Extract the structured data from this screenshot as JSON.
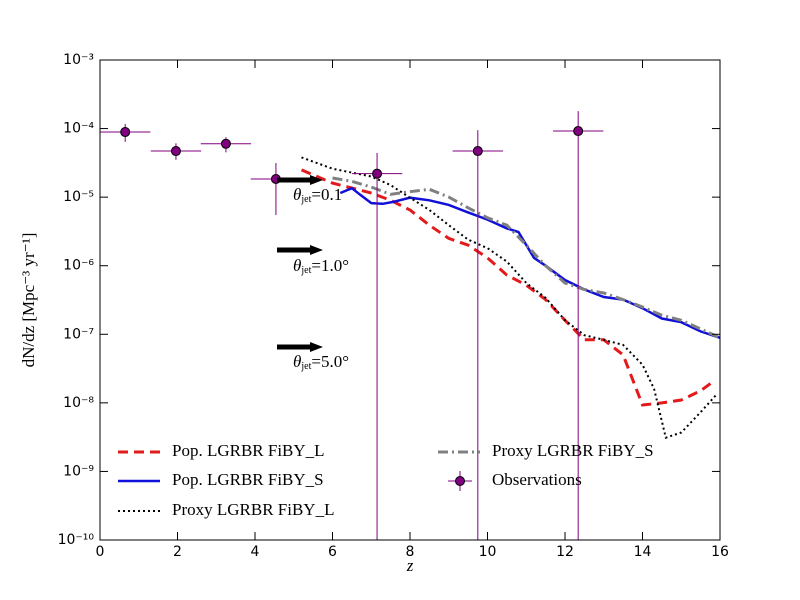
{
  "chart_data": {
    "type": "line",
    "xlabel": "z",
    "ylabel": "dN/dz [Mpc⁻³ yr⁻¹]",
    "xlim": [
      0,
      16
    ],
    "xticks": [
      0,
      2,
      4,
      6,
      8,
      10,
      12,
      14,
      16
    ],
    "ylim": [
      1e-10,
      0.001
    ],
    "ylog": true,
    "yticks": [
      {
        "value": 1e-10,
        "label": "10⁻¹⁰"
      },
      {
        "value": 1e-09,
        "label": "10⁻⁹"
      },
      {
        "value": 1e-08,
        "label": "10⁻⁸"
      },
      {
        "value": 1e-07,
        "label": "10⁻⁷"
      },
      {
        "value": 1e-06,
        "label": "10⁻⁶"
      },
      {
        "value": 1e-05,
        "label": "10⁻⁵"
      },
      {
        "value": 0.0001,
        "label": "10⁻⁴"
      },
      {
        "value": 0.001,
        "label": "10⁻³"
      }
    ],
    "legend": "lower left",
    "legend_columns": 2,
    "series": [
      {
        "name": "Pop. LGRBR FiBY_L",
        "color": "#e31a1c",
        "style": "dashed",
        "x": [
          5.2,
          6,
          7,
          7.5,
          8,
          8.5,
          9,
          9.5,
          10,
          10.5,
          11,
          11.5,
          12,
          12.5,
          13,
          13.5,
          14,
          14.5,
          15,
          15.5,
          15.8
        ],
        "values": [
          2.5e-05,
          1.6e-05,
          1.15e-05,
          9e-06,
          6.5e-06,
          3.9e-06,
          2.5e-06,
          2e-06,
          1.3e-06,
          7.3e-07,
          5.2e-07,
          3.2e-07,
          1.6e-07,
          8.3e-08,
          8.3e-08,
          5e-08,
          9.3e-09,
          1e-08,
          1.1e-08,
          1.5e-08,
          2e-08
        ]
      },
      {
        "name": "Pop. LGRBR FiBY_S",
        "color": "#1010d8",
        "style": "solid",
        "x": [
          6.2,
          6.5,
          6.7,
          7,
          7.3,
          7.6,
          8,
          8.5,
          9,
          9.5,
          10,
          10.5,
          10.8,
          11.2,
          11.5,
          12,
          12.5,
          13,
          13.5,
          14,
          14.5,
          15,
          15.5,
          16
        ],
        "values": [
          1.15e-05,
          1.35e-05,
          1.1e-05,
          8.2e-06,
          8e-06,
          8.6e-06,
          9.8e-06,
          9e-06,
          7.7e-06,
          6e-06,
          4.7e-06,
          3.5e-06,
          3.1e-06,
          1.3e-06,
          1e-06,
          6.2e-07,
          4.5e-07,
          3.5e-07,
          3.2e-07,
          2.4e-07,
          1.7e-07,
          1.5e-07,
          1.1e-07,
          8.9e-08
        ]
      },
      {
        "name": "Proxy LGRBR FiBY_L",
        "color": "#000000",
        "style": "dotted",
        "x": [
          5.2,
          6,
          7,
          7.5,
          8,
          8.5,
          9,
          9.5,
          10,
          10.5,
          11,
          11.5,
          12,
          12.5,
          13,
          13.5,
          14,
          14.3,
          14.6,
          15,
          15.5,
          15.9
        ],
        "values": [
          3.8e-05,
          2.6e-05,
          2e-05,
          1.5e-05,
          9.8e-06,
          6.5e-06,
          3.9e-06,
          2.4e-06,
          1.8e-06,
          1.15e-06,
          5.6e-07,
          3.4e-07,
          1.6e-07,
          9.7e-08,
          8.3e-08,
          7e-08,
          3.6e-08,
          1.6e-08,
          3.1e-09,
          3.7e-09,
          7.3e-09,
          1.3e-08
        ]
      },
      {
        "name": "Proxy LGRBR FiBY_S",
        "color": "#808080",
        "style": "dashdot",
        "x": [
          6,
          6.5,
          7,
          7.5,
          8,
          8.5,
          9,
          9.5,
          10,
          10.5,
          11,
          11.5,
          12,
          12.5,
          13,
          13.5,
          14,
          14.5,
          15,
          15.5,
          16
        ],
        "values": [
          1.9e-05,
          1.7e-05,
          1.4e-05,
          1.1e-05,
          1.2e-05,
          1.3e-05,
          1e-05,
          7e-06,
          5e-06,
          3.9e-06,
          2e-06,
          1e-06,
          5.6e-07,
          4.5e-07,
          4e-07,
          3.2e-07,
          2.5e-07,
          1.9e-07,
          1.6e-07,
          1.2e-07,
          8.9e-08
        ]
      },
      {
        "name": "Observations",
        "color": "#800080",
        "style": "errorbar",
        "x": [
          0.65,
          1.96,
          3.25,
          4.54,
          7.15,
          9.75,
          12.34
        ],
        "xerr": [
          0.65,
          0.65,
          0.65,
          0.65,
          0.65,
          0.65,
          0.65
        ],
        "values": [
          8.9e-05,
          4.7e-05,
          6e-05,
          1.84e-05,
          2.2e-05,
          4.7e-05,
          9.2e-05
        ],
        "yerr_lower": [
          2.5e-05,
          1.2e-05,
          1.5e-05,
          1.29e-05,
          2.2e-05,
          4.7e-05,
          9.2e-05
        ],
        "yerr_upper": [
          2.8e-05,
          1.4e-05,
          1.5e-05,
          1.31e-05,
          2.2e-05,
          4.8e-05,
          8.8e-05
        ]
      }
    ],
    "annotations": [
      {
        "symbol": "θ",
        "subscript": "jet",
        "text": "=0.1"
      },
      {
        "symbol": "θ",
        "subscript": "jet",
        "text": "=1.0°"
      },
      {
        "symbol": "θ",
        "subscript": "jet",
        "text": "=5.0°"
      }
    ]
  }
}
